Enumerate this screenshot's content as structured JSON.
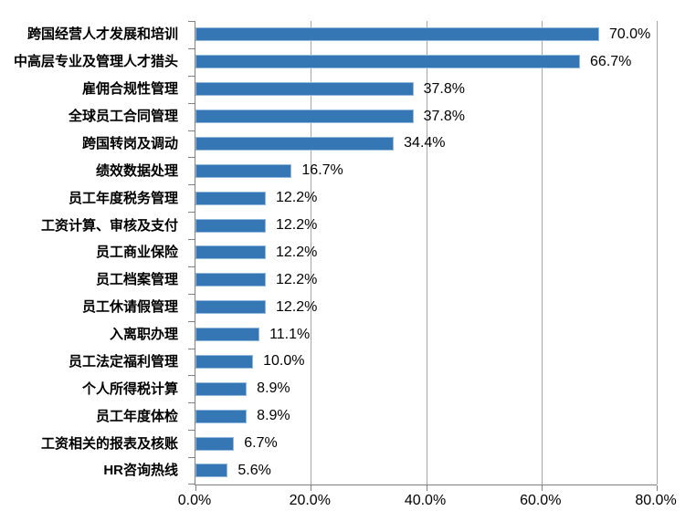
{
  "chart_data": {
    "type": "bar",
    "orientation": "horizontal",
    "title": "",
    "categories": [
      "跨国经营人才发展和培训",
      "中高层专业及管理人才猎头",
      "雇佣合规性管理",
      "全球员工合同管理",
      "跨国转岗及调动",
      "绩效数据处理",
      "员工年度税务管理",
      "工资计算、审核及支付",
      "员工商业保险",
      "员工档案管理",
      "员工休请假管理",
      "入离职办理",
      "员工法定福利管理",
      "个人所得税计算",
      "员工年度体检",
      "工资相关的报表及核账",
      "HR咨询热线"
    ],
    "values": [
      70.0,
      66.7,
      37.8,
      37.8,
      34.4,
      16.7,
      12.2,
      12.2,
      12.2,
      12.2,
      12.2,
      11.1,
      10.0,
      8.9,
      8.9,
      6.7,
      5.6
    ],
    "value_labels": [
      "70.0%",
      "66.7%",
      "37.8%",
      "37.8%",
      "34.4%",
      "16.7%",
      "12.2%",
      "12.2%",
      "12.2%",
      "12.2%",
      "12.2%",
      "11.1%",
      "10.0%",
      "8.9%",
      "8.9%",
      "6.7%",
      "5.6%"
    ],
    "x_ticks": [
      "0.0%",
      "20.0%",
      "40.0%",
      "60.0%",
      "80.0%"
    ],
    "xlim": [
      0,
      80
    ],
    "grid": "vertical",
    "legend": "none",
    "colors": {
      "bar_fill": "#3576b5",
      "bar_border": "#95b9dc",
      "gridline": "#a6a6a6",
      "axis": "#808080",
      "text": "#000000",
      "background": "#ffffff"
    }
  }
}
